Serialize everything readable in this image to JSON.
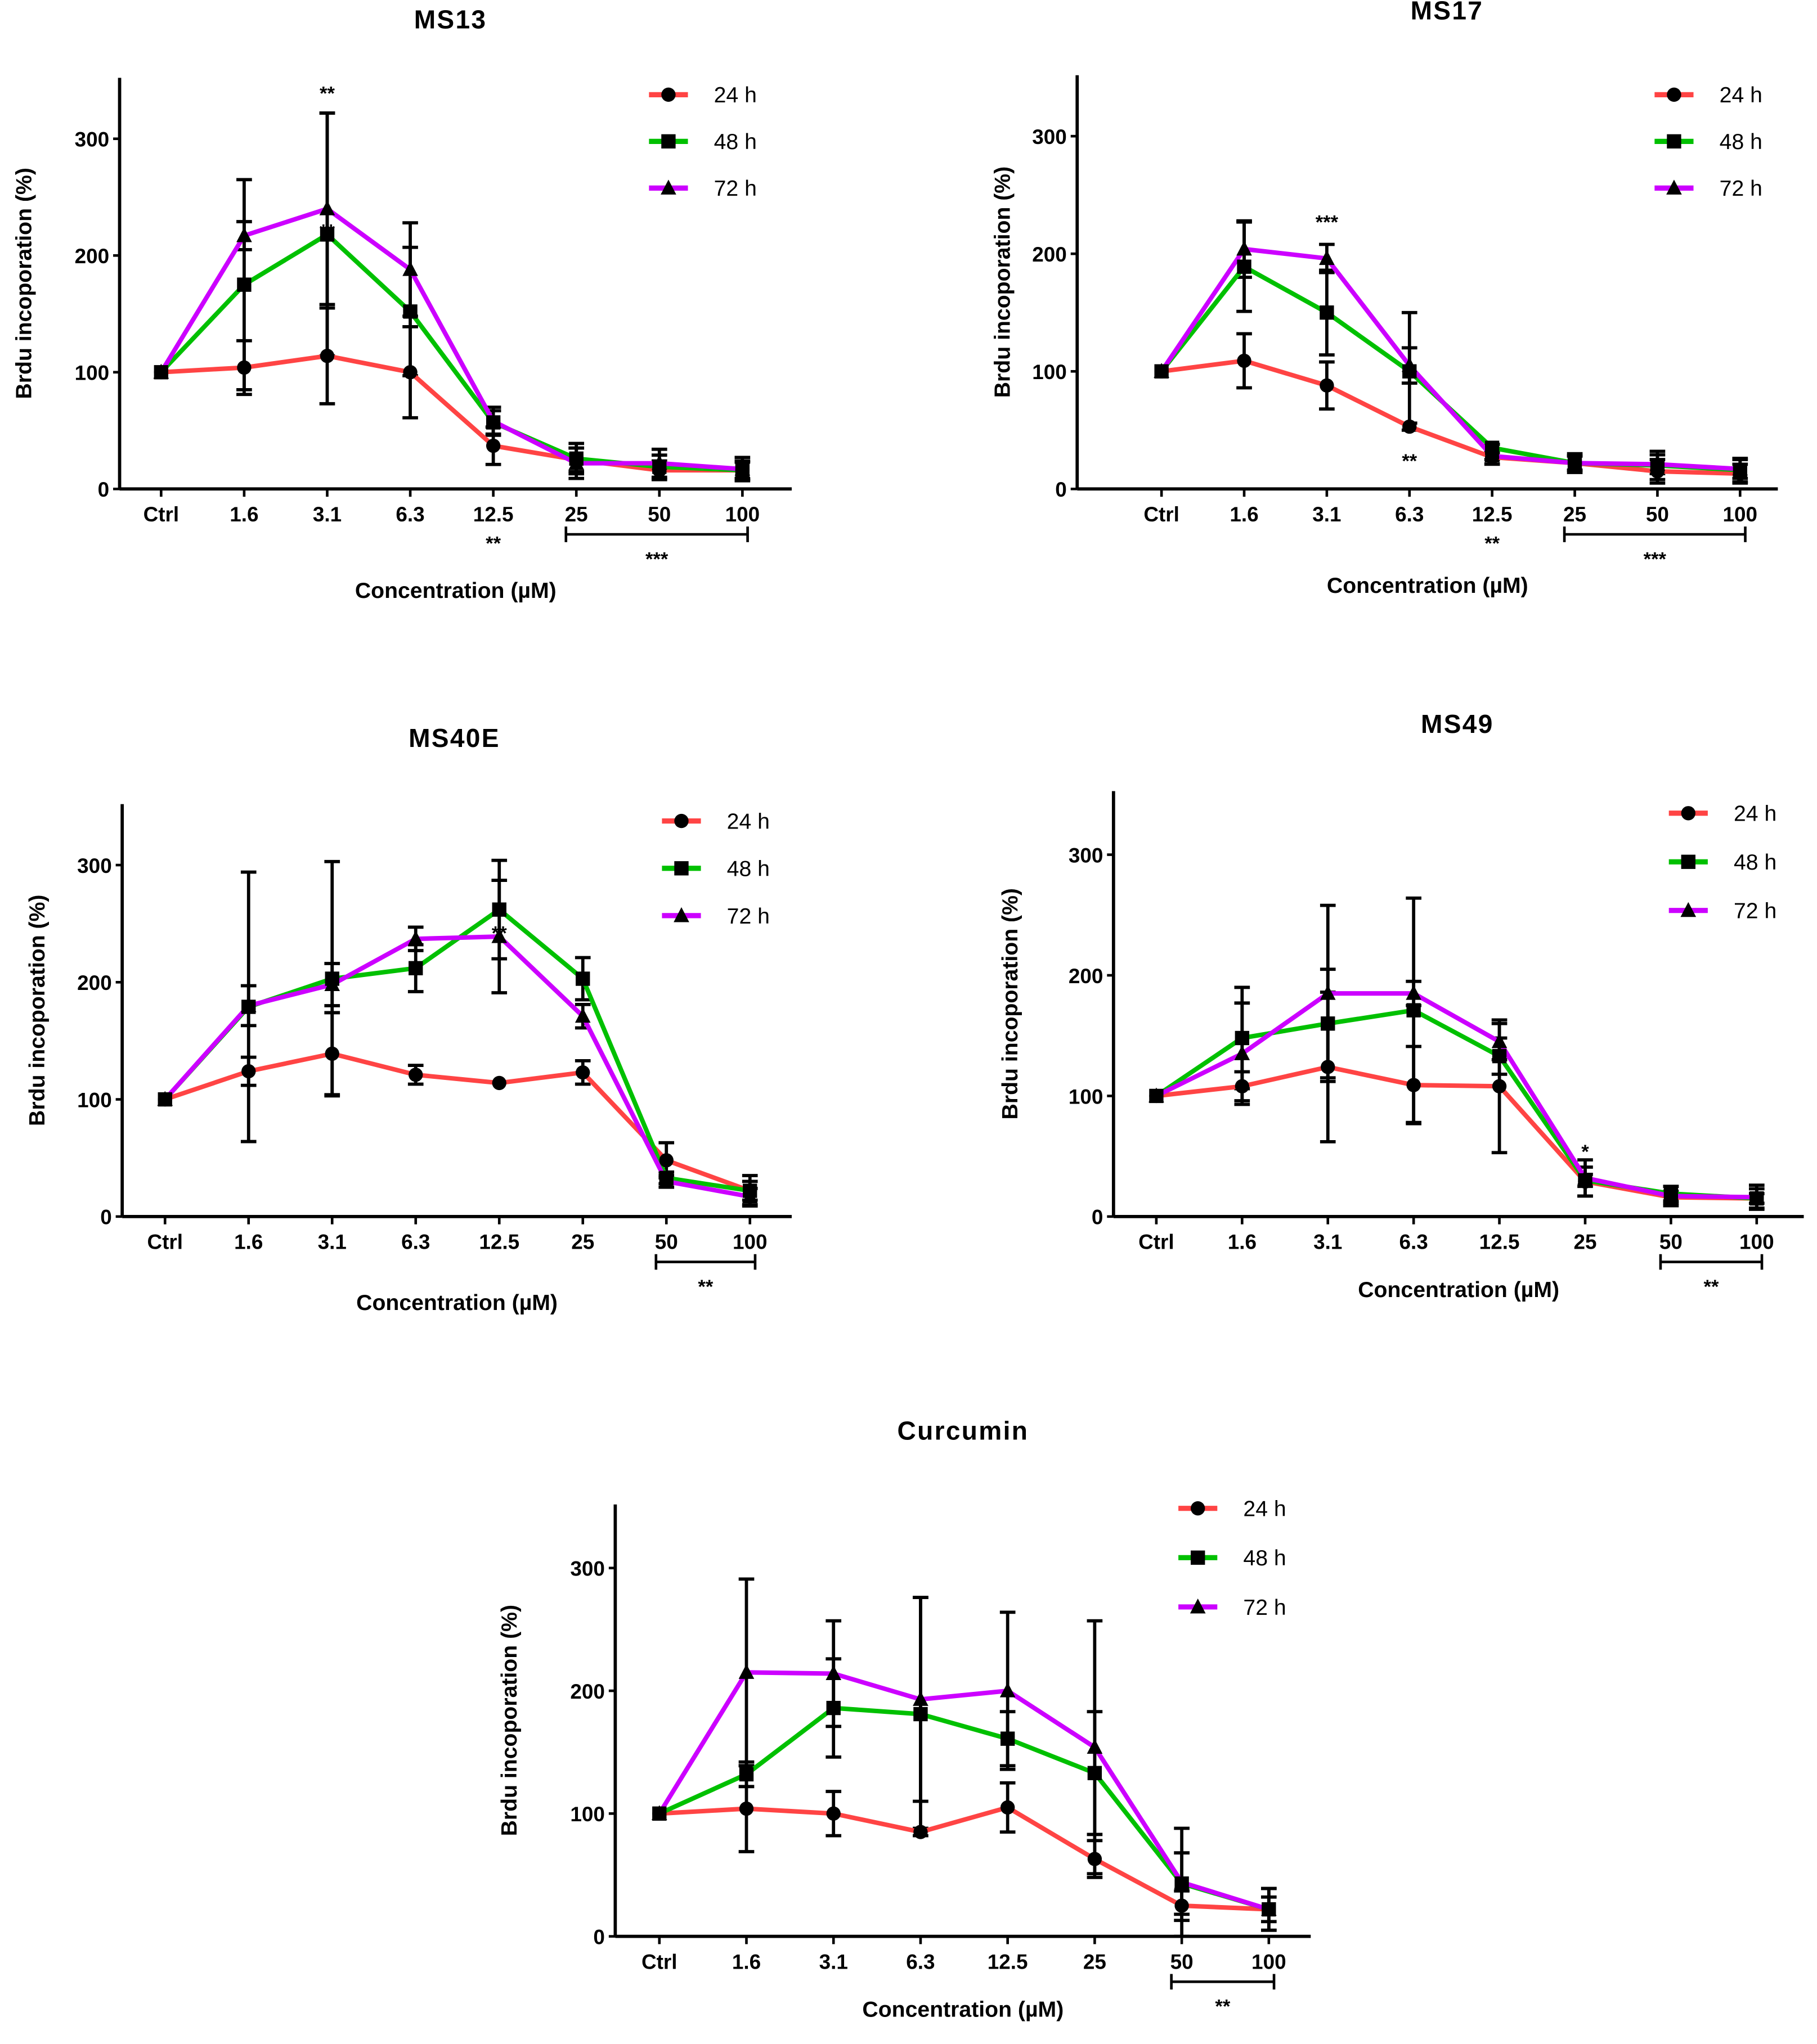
{
  "colors": {
    "24h": "#ff4444",
    "48h": "#00c000",
    "72h": "#cc00ff",
    "axis": "#000000"
  },
  "chart_data": [
    {
      "type": "line",
      "title": "MS13",
      "xlabel": "Concentration (µM)",
      "ylabel": "Brdu incoporation (%)",
      "categories": [
        "Ctrl",
        "1.6",
        "3.1",
        "6.3",
        "12.5",
        "25",
        "50",
        "100"
      ],
      "yticks": [
        "0",
        "100",
        "200",
        "300"
      ],
      "ylim": [
        0,
        350
      ],
      "legend": "top-right",
      "series": [
        {
          "name": "24 h",
          "marker": "circle",
          "values": [
            100,
            104,
            114,
            100,
            37,
            25,
            16,
            16
          ],
          "error": [
            0,
            23,
            41,
            39,
            16,
            10,
            8,
            7
          ]
        },
        {
          "name": "48 h",
          "marker": "square",
          "values": [
            100,
            175,
            218,
            152,
            57,
            26,
            19,
            16
          ],
          "error": [
            0,
            90,
            104,
            55,
            10,
            13,
            10,
            8
          ]
        },
        {
          "name": "72 h",
          "marker": "triangle",
          "values": [
            100,
            217,
            240,
            188,
            58,
            22,
            22,
            17
          ],
          "error": [
            0,
            12,
            82,
            40,
            12,
            13,
            12,
            10
          ]
        }
      ],
      "annotations": [
        {
          "text": "**",
          "at": "3.1",
          "value": 340
        },
        {
          "text": "**",
          "at": "3.1",
          "value": 222
        },
        {
          "text": "**",
          "at": "12.5",
          "below_axis": true
        }
      ],
      "brackets": [
        {
          "from": "25",
          "to": "100",
          "text": "***"
        }
      ]
    },
    {
      "type": "line",
      "title": "MS17",
      "xlabel": "Concentration (µM)",
      "ylabel": "Brdu incoporation (%)",
      "categories": [
        "Ctrl",
        "1.6",
        "3.1",
        "6.3",
        "12.5",
        "25",
        "50",
        "100"
      ],
      "yticks": [
        "0",
        "100",
        "200",
        "300"
      ],
      "ylim": [
        0,
        350
      ],
      "legend": "top-right",
      "series": [
        {
          "name": "24 h",
          "marker": "circle",
          "values": [
            100,
            109,
            88,
            53,
            27,
            22,
            15,
            13
          ],
          "error": [
            0,
            23,
            20,
            3,
            6,
            8,
            10,
            8
          ]
        },
        {
          "name": "48 h",
          "marker": "square",
          "values": [
            100,
            189,
            150,
            100,
            35,
            22,
            20,
            16
          ],
          "error": [
            0,
            38,
            36,
            50,
            3,
            6,
            12,
            10
          ]
        },
        {
          "name": "72 h",
          "marker": "triangle",
          "values": [
            100,
            204,
            196,
            105,
            28,
            22,
            21,
            17
          ],
          "error": [
            0,
            24,
            12,
            15,
            3,
            6,
            8,
            8
          ]
        }
      ],
      "annotations": [
        {
          "text": "***",
          "at": "3.1",
          "value": 228
        },
        {
          "text": "**",
          "at": "6.3",
          "value": 25
        },
        {
          "text": "**",
          "at": "12.5",
          "below_axis": true
        }
      ],
      "brackets": [
        {
          "from": "25",
          "to": "100",
          "text": "***"
        }
      ]
    },
    {
      "type": "line",
      "title": "MS40E",
      "xlabel": "Concentration (µM)",
      "ylabel": "Brdu incoporation (%)",
      "categories": [
        "Ctrl",
        "1.6",
        "3.1",
        "6.3",
        "12.5",
        "25",
        "50",
        "100"
      ],
      "yticks": [
        "0",
        "100",
        "200",
        "300"
      ],
      "ylim": [
        0,
        350
      ],
      "legend": "top-right",
      "series": [
        {
          "name": "24 h",
          "marker": "circle",
          "values": [
            100,
            124,
            139,
            121,
            114,
            123,
            48,
            22
          ],
          "error": [
            0,
            12,
            35,
            8,
            0,
            10,
            15,
            8
          ]
        },
        {
          "name": "48 h",
          "marker": "square",
          "values": [
            100,
            179,
            203,
            212,
            262,
            203,
            33,
            22
          ],
          "error": [
            0,
            115,
            100,
            20,
            42,
            18,
            5,
            13
          ]
        },
        {
          "name": "72 h",
          "marker": "triangle",
          "values": [
            100,
            180,
            198,
            237,
            239,
            171,
            30,
            17
          ],
          "error": [
            0,
            17,
            18,
            10,
            48,
            10,
            5,
            7
          ]
        }
      ],
      "annotations": [
        {
          "text": "**",
          "at": "12.5",
          "value": 243
        }
      ],
      "brackets": [
        {
          "from": "50",
          "to": "100",
          "text": "**"
        }
      ]
    },
    {
      "type": "line",
      "title": "MS49",
      "xlabel": "Concentration (µM)",
      "ylabel": "Brdu incoporation (%)",
      "categories": [
        "Ctrl",
        "1.6",
        "3.1",
        "6.3",
        "12.5",
        "25",
        "50",
        "100"
      ],
      "yticks": [
        "0",
        "100",
        "200",
        "300"
      ],
      "ylim": [
        0,
        350
      ],
      "legend": "top-right",
      "series": [
        {
          "name": "24 h",
          "marker": "circle",
          "values": [
            100,
            108,
            124,
            109,
            108,
            29,
            16,
            15
          ],
          "error": [
            0,
            12,
            62,
            32,
            55,
            12,
            5,
            4
          ]
        },
        {
          "name": "48 h",
          "marker": "square",
          "values": [
            100,
            148,
            160,
            171,
            133,
            30,
            19,
            15
          ],
          "error": [
            0,
            42,
            45,
            93,
            15,
            5,
            6,
            8
          ]
        },
        {
          "name": "72 h",
          "marker": "triangle",
          "values": [
            100,
            135,
            185,
            185,
            145,
            32,
            17,
            16
          ],
          "error": [
            0,
            42,
            73,
            10,
            15,
            15,
            8,
            10
          ]
        }
      ],
      "annotations": [
        {
          "text": "*",
          "at": "25",
          "value": 55
        }
      ],
      "brackets": [
        {
          "from": "50",
          "to": "100",
          "text": "**"
        }
      ]
    },
    {
      "type": "line",
      "title": "Curcumin",
      "xlabel": "Concentration (µM)",
      "ylabel": "Brdu incoporation (%)",
      "categories": [
        "Ctrl",
        "1.6",
        "3.1",
        "6.3",
        "12.5",
        "25",
        "50",
        "100"
      ],
      "yticks": [
        "0",
        "100",
        "200",
        "300"
      ],
      "ylim": [
        0,
        350
      ],
      "legend": "top-right",
      "series": [
        {
          "name": "24 h",
          "marker": "circle",
          "values": [
            100,
            104,
            100,
            85,
            105,
            63,
            25,
            22
          ],
          "error": [
            0,
            35,
            18,
            3,
            20,
            15,
            12,
            10
          ]
        },
        {
          "name": "48 h",
          "marker": "square",
          "values": [
            100,
            132,
            186,
            181,
            161,
            133,
            43,
            22
          ],
          "error": [
            0,
            10,
            40,
            95,
            22,
            50,
            25,
            17
          ]
        },
        {
          "name": "72 h",
          "marker": "triangle",
          "values": [
            100,
            215,
            214,
            193,
            200,
            154,
            44,
            22
          ],
          "error": [
            0,
            76,
            43,
            83,
            64,
            103,
            44,
            17
          ]
        }
      ],
      "annotations": [],
      "brackets": [
        {
          "from": "50",
          "to": "100",
          "text": "**"
        }
      ]
    }
  ]
}
